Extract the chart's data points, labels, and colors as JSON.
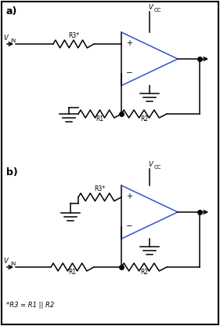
{
  "fig_width": 2.81,
  "fig_height": 4.15,
  "dpi": 100,
  "bg_color": "#ffffff",
  "line_color": "#000000",
  "blue_color": "#3355cc",
  "lw": 1.1,
  "label_a": "a)",
  "label_b": "b)",
  "note": "*R3 = R1 || R2",
  "vcc": "VCC",
  "vin": "VIN",
  "r1": "R1",
  "r2": "R2",
  "r3": "R3*"
}
